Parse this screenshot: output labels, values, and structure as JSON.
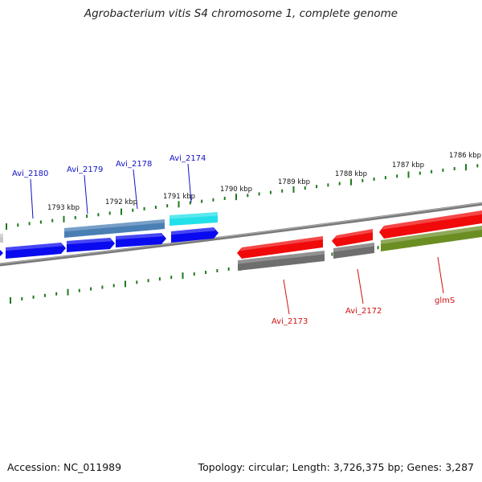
{
  "header": {
    "title": "Agrobacterium vitis S4 chromosome 1, complete genome"
  },
  "footer": {
    "accession": "Accession: NC_011989",
    "summary": "Topology: circular; Length: 3,726,375 bp; Genes: 3,287"
  },
  "ticks": [
    {
      "label": "1793 kbp"
    },
    {
      "label": "1792 kbp"
    },
    {
      "label": "1791 kbp"
    },
    {
      "label": "1790 kbp"
    },
    {
      "label": "1789 kbp"
    },
    {
      "label": "1788 kbp"
    },
    {
      "label": "1787 kbp"
    },
    {
      "label": "1786 kbp"
    }
  ],
  "gene_labels": [
    {
      "text": "Avi_2180",
      "strand": "forward"
    },
    {
      "text": "Avi_2179",
      "strand": "forward"
    },
    {
      "text": "Avi_2178",
      "strand": "forward"
    },
    {
      "text": "Avi_2174",
      "strand": "forward"
    },
    {
      "text": "Avi_2173",
      "strand": "reverse"
    },
    {
      "text": "Avi_2172",
      "strand": "reverse"
    },
    {
      "text": "glmS",
      "strand": "reverse"
    }
  ],
  "colors": {
    "forward_label": "#1010c8",
    "reverse_label": "#d01010",
    "cds_forward": "#0a0af0",
    "cds_reverse": "#f00a0a",
    "rna": "#8a8a8a",
    "gene_blue": "#4a7fb5",
    "gene_cyan": "#22e0e8",
    "gene_olive": "#6b8e23",
    "tick": "#1e7a1e",
    "backbone": "#7a7a7a"
  }
}
